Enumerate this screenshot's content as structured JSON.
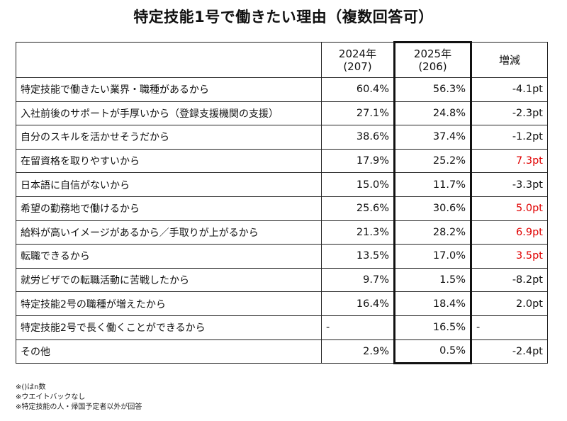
{
  "title": "特定技能1号で働きたい理由（複数回答可）",
  "headers": {
    "col1": "",
    "col2_line1": "2024年",
    "col2_line2": "(207)",
    "col3_line1": "2025年",
    "col3_line2": "(206)",
    "col4": "増減"
  },
  "rows": [
    {
      "label": "特定技能で働きたい業界・職種があるから",
      "y2024": "60.4%",
      "y2025": "56.3%",
      "diff": "-4.1pt",
      "highlight": false
    },
    {
      "label": "入社前後のサポートが手厚いから（登録支援機関の支援）",
      "y2024": "27.1%",
      "y2025": "24.8%",
      "diff": "-2.3pt",
      "highlight": false
    },
    {
      "label": "自分のスキルを活かせそうだから",
      "y2024": "38.6%",
      "y2025": "37.4%",
      "diff": "-1.2pt",
      "highlight": false
    },
    {
      "label": "在留資格を取りやすいから",
      "y2024": "17.9%",
      "y2025": "25.2%",
      "diff": "7.3pt",
      "highlight": true
    },
    {
      "label": "日本語に自信がないから",
      "y2024": "15.0%",
      "y2025": "11.7%",
      "diff": "-3.3pt",
      "highlight": false
    },
    {
      "label": "希望の勤務地で働けるから",
      "y2024": "25.6%",
      "y2025": "30.6%",
      "diff": "5.0pt",
      "highlight": true
    },
    {
      "label": "給料が高いイメージがあるから／手取りが上がるから",
      "y2024": "21.3%",
      "y2025": "28.2%",
      "diff": "6.9pt",
      "highlight": true
    },
    {
      "label": "転職できるから",
      "y2024": "13.5%",
      "y2025": "17.0%",
      "diff": "3.5pt",
      "highlight": true
    },
    {
      "label": "就労ビザでの転職活動に苦戦したから",
      "y2024": "9.7%",
      "y2025": "1.5%",
      "diff": "-8.2pt",
      "highlight": false
    },
    {
      "label": "特定技能2号の職種が増えたから",
      "y2024": "16.4%",
      "y2025": "18.4%",
      "diff": "2.0pt",
      "highlight": false
    },
    {
      "label": "特定技能2号で長く働くことができるから",
      "y2024": "-",
      "y2025": "16.5%",
      "diff": "-",
      "highlight": false
    },
    {
      "label": "その他",
      "y2024": "2.9%",
      "y2025": "0.5%",
      "diff": "-2.4pt",
      "highlight": false
    }
  ],
  "notes": [
    "※()はn数",
    "※ウエイトバックなし",
    "※特定技能の人・帰国予定者以外が回答"
  ],
  "colors": {
    "highlight": "#e00000",
    "border": "#222222"
  }
}
